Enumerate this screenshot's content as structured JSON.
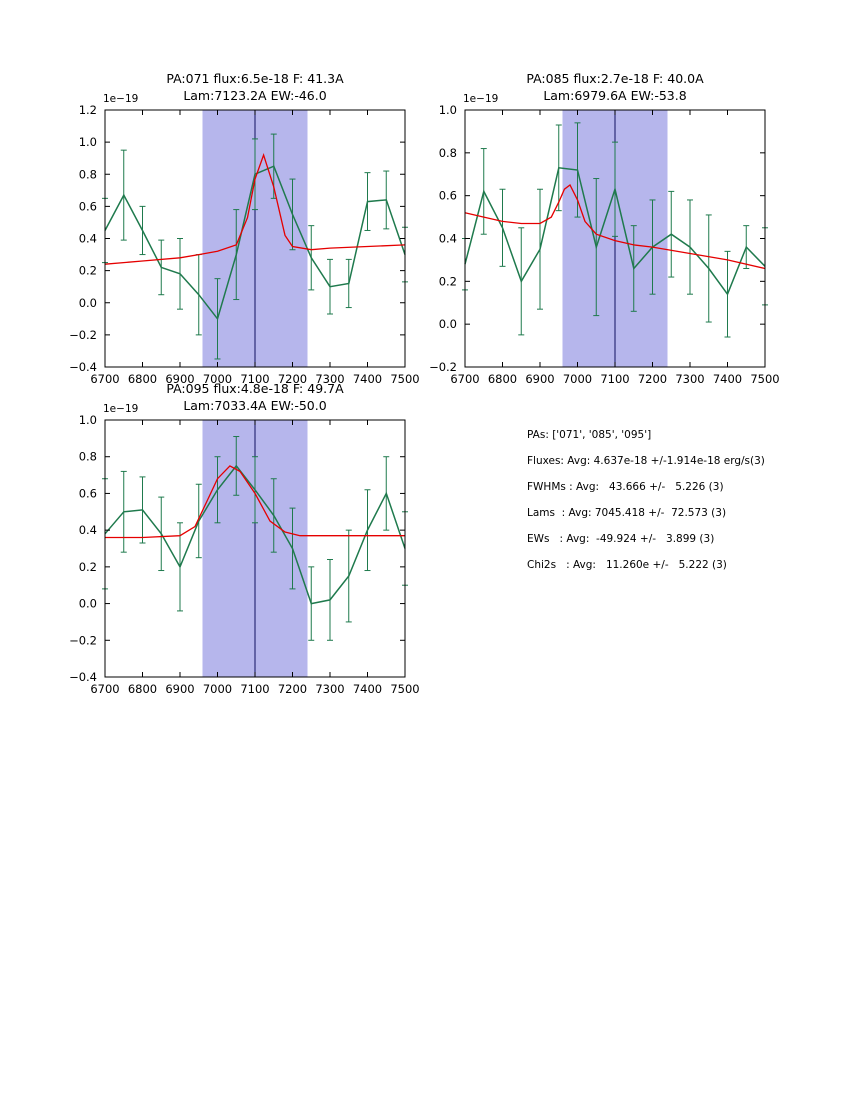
{
  "figure": {
    "background": "#ffffff"
  },
  "colors": {
    "spectrum": "#1f7a4d",
    "fit": "#e50000",
    "band": "#b6b6ec",
    "vline": "#101060",
    "axis": "#000000"
  },
  "stats": {
    "lines": [
      "PAs: ['071', '085', '095']",
      "Fluxes: Avg: 4.637e-18 +/-1.914e-18 erg/s(3)",
      "FWHMs : Avg:   43.666 +/-   5.226 (3)",
      "Lams  : Avg: 7045.418 +/-  72.573 (3)",
      "EWs   : Avg:  -49.924 +/-   3.899 (3)",
      "Chi2s   : Avg:   11.260e +/-   5.222 (3)"
    ]
  },
  "chart_data": [
    {
      "type": "line",
      "title_line1": "PA:071 flux:6.5e-18 F: 41.3A",
      "title_line2": "Lam:7123.2A EW:-46.0",
      "offset_label": "1e−19",
      "xlim": [
        6700,
        7500
      ],
      "ylim": [
        -0.4,
        1.2
      ],
      "xticks": [
        6700,
        6800,
        6900,
        7000,
        7100,
        7200,
        7300,
        7400,
        7500
      ],
      "xtick_labels": [
        "6700",
        "6800",
        "6900",
        "7000",
        "7100",
        "7200",
        "7300",
        "7400",
        "7500"
      ],
      "yticks": [
        -0.4,
        -0.2,
        0.0,
        0.2,
        0.4,
        0.6,
        0.8,
        1.0,
        1.2
      ],
      "ytick_labels": [
        "−0.4",
        "−0.2",
        "0.0",
        "0.2",
        "0.4",
        "0.6",
        "0.8",
        "1.0",
        "1.2"
      ],
      "band": [
        6960,
        7240
      ],
      "vline": 7100,
      "grid": false,
      "legend": null,
      "series": [
        {
          "name": "spectrum",
          "role": "spectrum",
          "x": [
            6700,
            6750,
            6800,
            6850,
            6900,
            6950,
            7000,
            7050,
            7100,
            7150,
            7200,
            7250,
            7300,
            7350,
            7400,
            7450,
            7500
          ],
          "y": [
            0.45,
            0.67,
            0.45,
            0.22,
            0.18,
            0.05,
            -0.1,
            0.3,
            0.8,
            0.85,
            0.55,
            0.28,
            0.1,
            0.12,
            0.63,
            0.64,
            0.3
          ],
          "err": [
            0.2,
            0.28,
            0.15,
            0.17,
            0.22,
            0.25,
            0.25,
            0.28,
            0.22,
            0.2,
            0.22,
            0.2,
            0.17,
            0.15,
            0.18,
            0.18,
            0.17
          ]
        },
        {
          "name": "fit",
          "role": "fit",
          "x": [
            6700,
            6800,
            6900,
            6950,
            7000,
            7050,
            7080,
            7100,
            7123,
            7150,
            7180,
            7200,
            7250,
            7300,
            7400,
            7500
          ],
          "y": [
            0.24,
            0.26,
            0.28,
            0.3,
            0.32,
            0.36,
            0.53,
            0.77,
            0.92,
            0.72,
            0.42,
            0.35,
            0.33,
            0.34,
            0.35,
            0.36
          ]
        }
      ]
    },
    {
      "type": "line",
      "title_line1": "PA:085 flux:2.7e-18 F: 40.0A",
      "title_line2": "Lam:6979.6A EW:-53.8",
      "offset_label": "1e−19",
      "xlim": [
        6700,
        7500
      ],
      "ylim": [
        -0.2,
        1.0
      ],
      "xticks": [
        6700,
        6800,
        6900,
        7000,
        7100,
        7200,
        7300,
        7400,
        7500
      ],
      "xtick_labels": [
        "6700",
        "6800",
        "6900",
        "7000",
        "7100",
        "7200",
        "7300",
        "7400",
        "7500"
      ],
      "yticks": [
        -0.2,
        0.0,
        0.2,
        0.4,
        0.6,
        0.8,
        1.0
      ],
      "ytick_labels": [
        "−0.2",
        "0.0",
        "0.2",
        "0.4",
        "0.6",
        "0.8",
        "1.0"
      ],
      "band": [
        6960,
        7240
      ],
      "vline": 7100,
      "grid": false,
      "legend": null,
      "series": [
        {
          "name": "spectrum",
          "role": "spectrum",
          "x": [
            6700,
            6750,
            6800,
            6850,
            6900,
            6950,
            7000,
            7050,
            7100,
            7150,
            7200,
            7250,
            7300,
            7350,
            7400,
            7450,
            7500
          ],
          "y": [
            0.28,
            0.62,
            0.45,
            0.2,
            0.35,
            0.73,
            0.72,
            0.36,
            0.63,
            0.26,
            0.36,
            0.42,
            0.36,
            0.26,
            0.14,
            0.36,
            0.27
          ],
          "err": [
            0.12,
            0.2,
            0.18,
            0.25,
            0.28,
            0.2,
            0.22,
            0.32,
            0.22,
            0.2,
            0.22,
            0.2,
            0.22,
            0.25,
            0.2,
            0.1,
            0.18
          ]
        },
        {
          "name": "fit",
          "role": "fit",
          "x": [
            6700,
            6750,
            6800,
            6850,
            6900,
            6930,
            6950,
            6965,
            6980,
            7000,
            7020,
            7050,
            7100,
            7150,
            7200,
            7300,
            7400,
            7500
          ],
          "y": [
            0.52,
            0.5,
            0.48,
            0.47,
            0.47,
            0.5,
            0.57,
            0.63,
            0.65,
            0.58,
            0.48,
            0.42,
            0.39,
            0.37,
            0.36,
            0.33,
            0.3,
            0.26
          ]
        }
      ]
    },
    {
      "type": "line",
      "title_line1": "PA:095 flux:4.8e-18 F: 49.7A",
      "title_line2": "Lam:7033.4A EW:-50.0",
      "offset_label": "1e−19",
      "xlim": [
        6700,
        7500
      ],
      "ylim": [
        -0.4,
        1.0
      ],
      "xticks": [
        6700,
        6800,
        6900,
        7000,
        7100,
        7200,
        7300,
        7400,
        7500
      ],
      "xtick_labels": [
        "6700",
        "6800",
        "6900",
        "7000",
        "7100",
        "7200",
        "7300",
        "7400",
        "7500"
      ],
      "yticks": [
        -0.4,
        -0.2,
        0.0,
        0.2,
        0.4,
        0.6,
        0.8,
        1.0
      ],
      "ytick_labels": [
        "−0.4",
        "−0.2",
        "0.0",
        "0.2",
        "0.4",
        "0.6",
        "0.8",
        "1.0"
      ],
      "band": [
        6960,
        7240
      ],
      "vline": 7100,
      "grid": false,
      "legend": null,
      "series": [
        {
          "name": "spectrum",
          "role": "spectrum",
          "x": [
            6700,
            6750,
            6800,
            6850,
            6900,
            6950,
            7000,
            7050,
            7100,
            7150,
            7200,
            7250,
            7300,
            7350,
            7400,
            7450,
            7500
          ],
          "y": [
            0.38,
            0.5,
            0.51,
            0.38,
            0.2,
            0.45,
            0.62,
            0.75,
            0.62,
            0.48,
            0.3,
            0.0,
            0.02,
            0.15,
            0.4,
            0.6,
            0.3
          ],
          "err": [
            0.3,
            0.22,
            0.18,
            0.2,
            0.24,
            0.2,
            0.18,
            0.16,
            0.18,
            0.2,
            0.22,
            0.2,
            0.22,
            0.25,
            0.22,
            0.2,
            0.2
          ]
        },
        {
          "name": "fit",
          "role": "fit",
          "x": [
            6700,
            6800,
            6900,
            6940,
            6970,
            7000,
            7033,
            7060,
            7100,
            7140,
            7180,
            7220,
            7300,
            7400,
            7500
          ],
          "y": [
            0.36,
            0.36,
            0.37,
            0.42,
            0.55,
            0.68,
            0.75,
            0.72,
            0.6,
            0.45,
            0.39,
            0.37,
            0.37,
            0.37,
            0.37
          ]
        }
      ]
    }
  ]
}
